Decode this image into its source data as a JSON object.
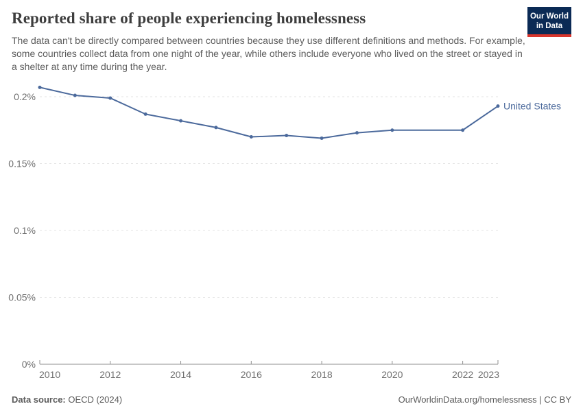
{
  "header": {
    "title": "Reported share of people experiencing homelessness",
    "subtitle": "The data can't be directly compared between countries because they use different definitions and methods. For example, some countries collect data from one night of the year, while others include everyone who lived on the street or stayed in a shelter at any time during the year.",
    "logo": {
      "line1": "Our World",
      "line2": "in Data",
      "bg_color": "#0b2a55",
      "accent_color": "#d8352c"
    }
  },
  "chart_data": {
    "type": "line",
    "title": "Reported share of people experiencing homelessness",
    "x": [
      2010,
      2011,
      2012,
      2013,
      2014,
      2015,
      2016,
      2017,
      2018,
      2019,
      2020,
      2022,
      2023
    ],
    "series": [
      {
        "name": "United States",
        "color": "#4c6a9c",
        "values": [
          0.207,
          0.201,
          0.199,
          0.187,
          0.182,
          0.177,
          0.17,
          0.171,
          0.169,
          0.173,
          0.175,
          0.175,
          0.193
        ]
      }
    ],
    "unit": "%",
    "ylim": [
      0,
      0.22
    ],
    "yticks": {
      "values": [
        0,
        0.05,
        0.1,
        0.15,
        0.2
      ],
      "labels": [
        "0%",
        "0.05%",
        "0.1%",
        "0.15%",
        "0.2%"
      ]
    },
    "xticks": {
      "values": [
        2010,
        2012,
        2014,
        2016,
        2018,
        2020,
        2022,
        2023
      ],
      "labels": [
        "2010",
        "2012",
        "2014",
        "2016",
        "2018",
        "2020",
        "2022",
        "2023"
      ]
    },
    "grid": "horizontal dashed",
    "legend_position": "label at end of line",
    "missing_years": [
      2021
    ]
  },
  "footer": {
    "source_label": "Data source:",
    "source_value": "OECD (2024)",
    "attribution": "OurWorldinData.org/homelessness | CC BY"
  },
  "colors": {
    "line": "#4c6a9c",
    "grid": "#e3e3e3",
    "axis": "#8f8f8f",
    "tick_text": "#6e6e6e"
  }
}
